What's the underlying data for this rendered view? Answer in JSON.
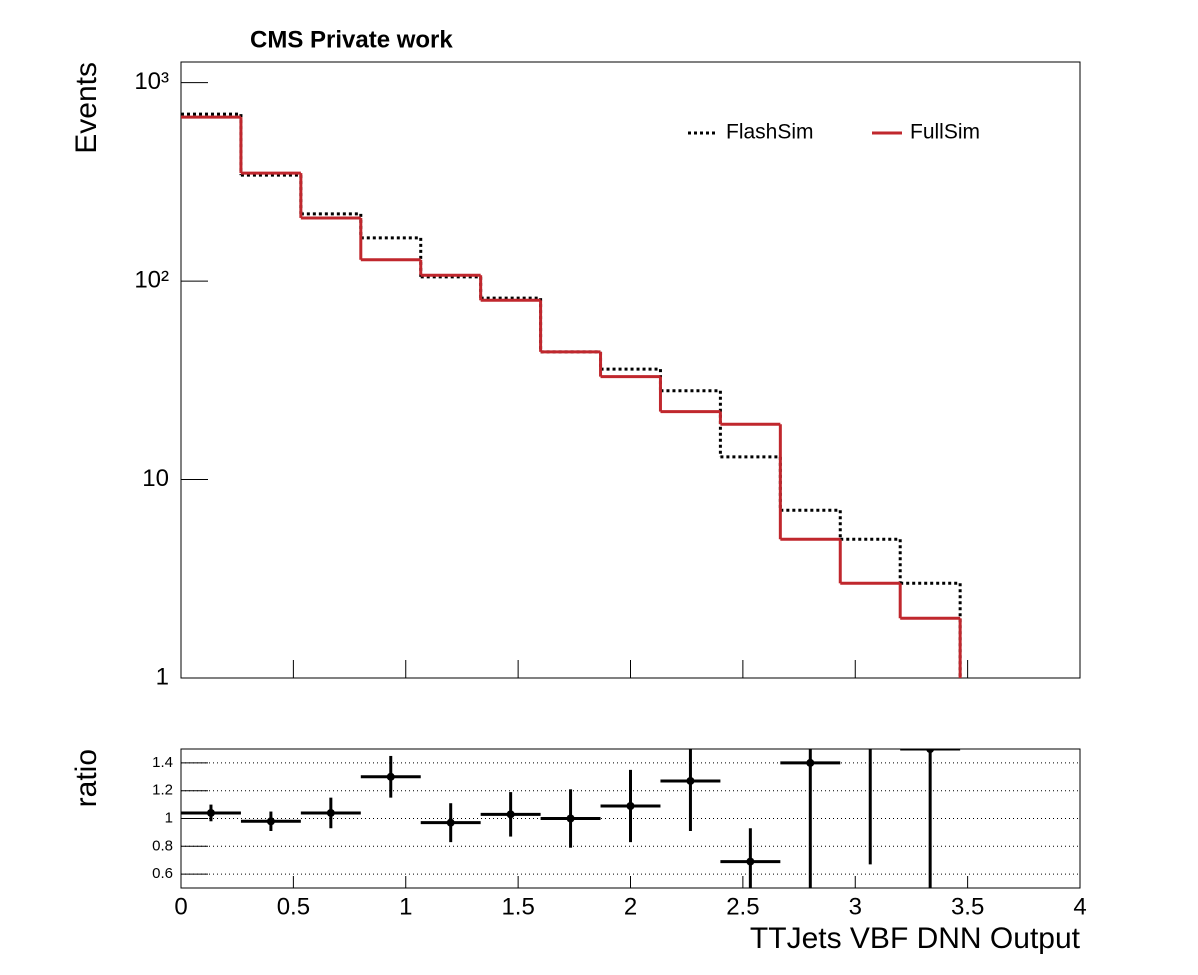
{
  "chart_data": [
    {
      "type": "histogram",
      "title": "CMS Private work",
      "ylabel": "Events",
      "log_y": true,
      "legend": "upper right",
      "bins": [
        0,
        0.2667,
        0.5333,
        0.8,
        1.0667,
        1.3333,
        1.6,
        1.8667,
        2.1333,
        2.4,
        2.6667,
        2.9333,
        3.2,
        3.4667,
        3.7333,
        4
      ],
      "series": [
        {
          "name": "FlashSim",
          "color": "#000000",
          "linestyle": "dotted",
          "values": [
            694,
            342,
            218,
            165,
            105,
            82,
            44,
            36,
            28,
            13,
            7,
            5,
            3,
            null,
            null
          ]
        },
        {
          "name": "FullSim",
          "color": "#c0272d",
          "linestyle": "solid",
          "values": [
            670,
            350,
            208,
            128,
            107,
            80,
            44,
            33,
            22,
            19,
            5,
            3,
            2,
            null,
            null
          ]
        }
      ],
      "xlim": [
        0,
        4
      ],
      "ylim": [
        1,
        1270
      ],
      "yticks": [
        1,
        10,
        {
          "value": 100,
          "label": "10²"
        },
        {
          "value": 1000,
          "label": "10³"
        }
      ]
    },
    {
      "type": "errorbar",
      "ylabel": "ratio",
      "xlabel": "TTJets VBF DNN Output",
      "color": "#000000",
      "grid": true,
      "bins": [
        0,
        0.2667,
        0.5333,
        0.8,
        1.0667,
        1.3333,
        1.6,
        1.8667,
        2.1333,
        2.4,
        2.6667,
        2.9333,
        3.2,
        3.4667,
        3.7333,
        4
      ],
      "x": [
        0.1333,
        0.4,
        0.6667,
        0.9333,
        1.2,
        1.4667,
        1.7333,
        2,
        2.2667,
        2.5333,
        2.8,
        3.0667,
        3.3333,
        3.6,
        3.8667
      ],
      "values": [
        1.04,
        0.98,
        1.04,
        1.3,
        0.97,
        1.03,
        1.0,
        1.09,
        1.27,
        0.69,
        1.4,
        1.67,
        1.5,
        null,
        null
      ],
      "errors": [
        0.06,
        0.07,
        0.11,
        0.15,
        0.14,
        0.16,
        0.21,
        0.26,
        0.36,
        0.24,
        0.9,
        1.0,
        1.0,
        null,
        null
      ],
      "xlim": [
        0,
        4
      ],
      "ylim": [
        0.5,
        1.5
      ],
      "xticks": [
        0,
        0.5,
        1,
        1.5,
        2,
        2.5,
        3,
        3.5,
        4
      ],
      "yticks": [
        0.6,
        0.8,
        1,
        1.2,
        1.4
      ]
    }
  ]
}
